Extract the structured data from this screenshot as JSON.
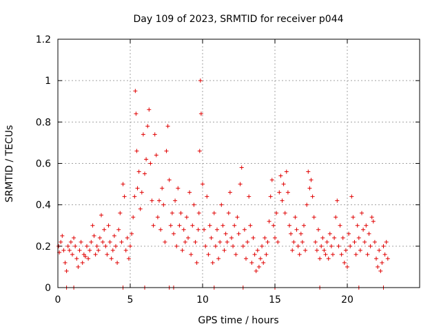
{
  "chart_data": {
    "type": "scatter",
    "title": "Day 109 of 2023, SRMTID for receiver p044",
    "xlabel": "GPS time / hours",
    "ylabel": "SRMTID / TECUs",
    "xlim": [
      0,
      25
    ],
    "ylim": [
      0,
      1.2
    ],
    "x_ticks": [
      0,
      5,
      10,
      15,
      20
    ],
    "x_tick_labels": [
      "0",
      "5",
      "10",
      "15",
      "20"
    ],
    "y_ticks": [
      0,
      0.2,
      0.4,
      0.6,
      0.8,
      1.0,
      1.2
    ],
    "y_tick_labels": [
      "0",
      "0.2",
      "0.4",
      "0.6",
      "0.8",
      "1",
      "1.2"
    ],
    "grid": true,
    "marker": "+",
    "series_color": "#e00000",
    "series": [
      {
        "name": "SRMTID",
        "x": [
          0.05,
          0.1,
          0.2,
          0.3,
          0.4,
          0.5,
          0.6,
          0.7,
          0.8,
          0.9,
          1.0,
          1.1,
          1.2,
          1.3,
          1.4,
          1.5,
          1.6,
          1.7,
          1.8,
          1.9,
          2.0,
          2.1,
          2.2,
          2.3,
          2.4,
          2.5,
          2.6,
          2.7,
          2.8,
          2.9,
          3.0,
          3.1,
          3.2,
          3.3,
          3.4,
          3.5,
          3.6,
          3.7,
          3.8,
          3.9,
          4.0,
          4.1,
          4.2,
          4.3,
          4.4,
          4.5,
          4.6,
          4.7,
          4.8,
          4.9,
          5.0,
          5.1,
          5.2,
          5.3,
          5.35,
          5.4,
          5.45,
          5.5,
          5.6,
          5.7,
          5.8,
          5.9,
          6.0,
          6.1,
          6.2,
          6.3,
          6.4,
          6.5,
          6.6,
          6.7,
          6.8,
          6.9,
          7.0,
          7.1,
          7.2,
          7.3,
          7.4,
          7.5,
          7.6,
          7.7,
          7.8,
          7.9,
          8.0,
          8.1,
          8.2,
          8.3,
          8.4,
          8.5,
          8.6,
          8.7,
          8.8,
          8.9,
          9.0,
          9.1,
          9.2,
          9.3,
          9.4,
          9.5,
          9.6,
          9.7,
          9.75,
          9.8,
          9.85,
          9.9,
          10.0,
          10.1,
          10.2,
          10.3,
          10.4,
          10.5,
          10.6,
          10.7,
          10.8,
          10.9,
          11.0,
          11.1,
          11.2,
          11.3,
          11.4,
          11.5,
          11.6,
          11.7,
          11.8,
          11.9,
          12.0,
          12.1,
          12.2,
          12.3,
          12.4,
          12.5,
          12.6,
          12.7,
          12.8,
          12.9,
          13.0,
          13.1,
          13.2,
          13.3,
          13.4,
          13.5,
          13.6,
          13.7,
          13.8,
          13.9,
          14.0,
          14.1,
          14.2,
          14.3,
          14.4,
          14.5,
          14.6,
          14.7,
          14.8,
          14.9,
          15.0,
          15.1,
          15.2,
          15.3,
          15.4,
          15.5,
          15.6,
          15.7,
          15.8,
          15.9,
          16.0,
          16.1,
          16.2,
          16.3,
          16.4,
          16.5,
          16.6,
          16.7,
          16.8,
          16.9,
          17.0,
          17.1,
          17.2,
          17.3,
          17.4,
          17.5,
          17.6,
          17.7,
          17.8,
          17.9,
          18.0,
          18.1,
          18.2,
          18.3,
          18.4,
          18.5,
          18.6,
          18.7,
          18.8,
          18.9,
          19.0,
          19.1,
          19.2,
          19.3,
          19.4,
          19.5,
          19.6,
          19.7,
          19.8,
          19.9,
          20.0,
          20.1,
          20.2,
          20.3,
          20.4,
          20.5,
          20.6,
          20.7,
          20.8,
          20.9,
          21.0,
          21.1,
          21.2,
          21.3,
          21.4,
          21.5,
          21.6,
          21.7,
          21.8,
          21.9,
          22.0,
          22.1,
          22.2,
          22.3,
          22.4,
          22.5,
          22.6,
          22.7,
          22.8
        ],
        "y": [
          0.2,
          0.17,
          0.22,
          0.25,
          0.18,
          0.12,
          0.08,
          0.2,
          0.18,
          0.22,
          0.16,
          0.24,
          0.2,
          0.14,
          0.1,
          0.18,
          0.22,
          0.12,
          0.16,
          0.15,
          0.2,
          0.14,
          0.18,
          0.22,
          0.3,
          0.25,
          0.16,
          0.2,
          0.18,
          0.24,
          0.35,
          0.22,
          0.28,
          0.2,
          0.16,
          0.3,
          0.22,
          0.14,
          0.18,
          0.25,
          0.2,
          0.12,
          0.28,
          0.36,
          0.22,
          0.5,
          0.44,
          0.18,
          0.24,
          0.14,
          0.2,
          0.26,
          0.34,
          0.44,
          0.95,
          0.84,
          0.66,
          0.48,
          0.56,
          0.38,
          0.46,
          0.74,
          0.55,
          0.62,
          0.78,
          0.86,
          0.6,
          0.42,
          0.3,
          0.74,
          0.64,
          0.34,
          0.42,
          0.28,
          0.48,
          0.4,
          0.22,
          0.66,
          0.78,
          0.52,
          0.3,
          0.36,
          0.26,
          0.42,
          0.2,
          0.48,
          0.3,
          0.36,
          0.18,
          0.28,
          0.22,
          0.34,
          0.24,
          0.46,
          0.16,
          0.3,
          0.4,
          0.22,
          0.12,
          0.28,
          0.36,
          0.66,
          1.0,
          0.84,
          0.5,
          0.28,
          0.2,
          0.44,
          0.16,
          0.3,
          0.24,
          0.12,
          0.36,
          0.2,
          0.28,
          0.14,
          0.22,
          0.4,
          0.3,
          0.18,
          0.26,
          0.22,
          0.36,
          0.46,
          0.24,
          0.2,
          0.3,
          0.16,
          0.34,
          0.26,
          0.5,
          0.58,
          0.2,
          0.28,
          0.14,
          0.22,
          0.44,
          0.3,
          0.12,
          0.24,
          0.16,
          0.08,
          0.18,
          0.1,
          0.14,
          0.2,
          0.12,
          0.24,
          0.16,
          0.22,
          0.32,
          0.44,
          0.52,
          0.3,
          0.24,
          0.36,
          0.22,
          0.46,
          0.54,
          0.42,
          0.5,
          0.36,
          0.56,
          0.46,
          0.3,
          0.26,
          0.18,
          0.22,
          0.34,
          0.28,
          0.2,
          0.16,
          0.26,
          0.22,
          0.3,
          0.18,
          0.4,
          0.56,
          0.48,
          0.52,
          0.44,
          0.34,
          0.22,
          0.18,
          0.28,
          0.14,
          0.2,
          0.24,
          0.18,
          0.16,
          0.22,
          0.14,
          0.26,
          0.2,
          0.16,
          0.24,
          0.34,
          0.42,
          0.2,
          0.3,
          0.16,
          0.24,
          0.12,
          0.18,
          0.1,
          0.26,
          0.2,
          0.44,
          0.34,
          0.22,
          0.16,
          0.3,
          0.24,
          0.18,
          0.36,
          0.28,
          0.22,
          0.3,
          0.16,
          0.26,
          0.2,
          0.34,
          0.32,
          0.22,
          0.14,
          0.1,
          0.18,
          0.08,
          0.12,
          0.2,
          0.16,
          0.22,
          0.14
        ],
        "zero_x": [
          0.6,
          1.1,
          4.5,
          6.0,
          7.7,
          8.0,
          10.8,
          12.8,
          15.0,
          18.1,
          20.8,
          22.5
        ]
      }
    ]
  }
}
